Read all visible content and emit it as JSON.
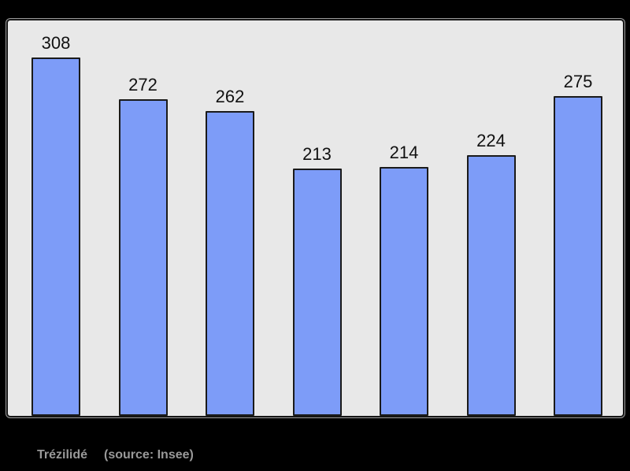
{
  "chart_data": {
    "type": "bar",
    "categories": [
      "",
      "",
      "",
      "",
      "",
      "",
      ""
    ],
    "values": [
      308,
      272,
      262,
      213,
      214,
      224,
      275
    ],
    "data_labels": [
      "308",
      "272",
      "262",
      "213",
      "214",
      "224",
      "275"
    ],
    "title": "",
    "xlabel": "",
    "ylabel": "",
    "ylim": [
      0,
      340
    ],
    "grid": false,
    "legend_position": "none",
    "bar_color": "#7d9cf8",
    "bar_border_color": "#1a1a1a",
    "panel_background": "#e8e8e8",
    "outer_background": "#000000",
    "label_color": "#111111"
  },
  "caption": {
    "name": "Trézilidé",
    "source": "(source: Insee)",
    "color": "#999999"
  }
}
